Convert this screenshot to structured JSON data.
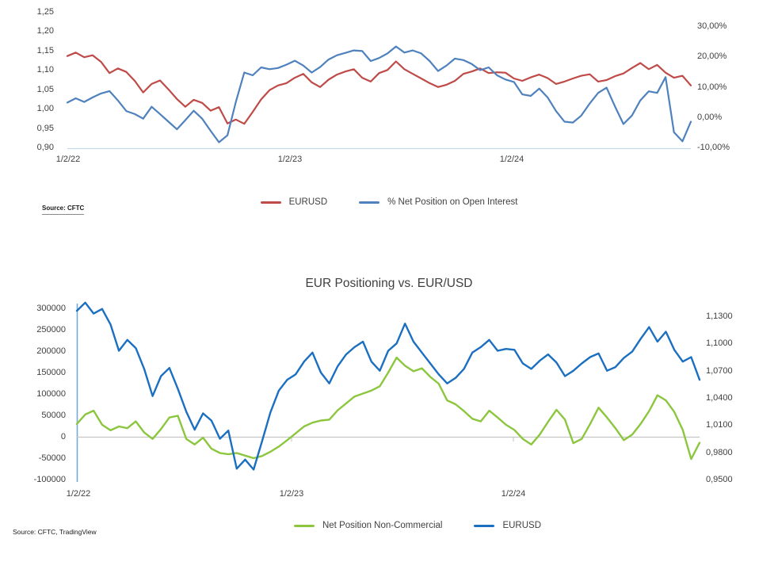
{
  "page": {
    "background": "#ffffff"
  },
  "chart_data": [
    {
      "type": "line",
      "title": "",
      "source": "Source: CFTC",
      "legend_position": "bottom-center",
      "grid": "baseline-only",
      "x_tick_labels": [
        "1/2/22",
        "1/2/23",
        "1/2/24"
      ],
      "left_axis": {
        "range": [
          0.9,
          1.25
        ],
        "ticks": [
          "1,25",
          "1,20",
          "1,15",
          "1,10",
          "1,05",
          "1,00",
          "0,95",
          "0,90"
        ]
      },
      "right_axis": {
        "range": [
          -10,
          30
        ],
        "ticks": [
          "30,00%",
          "20,00%",
          "10,00%",
          "0,00%",
          "-10,00%"
        ]
      },
      "series": [
        {
          "name": "EURUSD",
          "axis": "left",
          "color": "#BE4B48",
          "values": [
            1.136,
            1.145,
            1.133,
            1.138,
            1.121,
            1.092,
            1.104,
            1.095,
            1.072,
            1.042,
            1.064,
            1.073,
            1.05,
            1.025,
            1.005,
            1.023,
            1.015,
            0.995,
            1.004,
            0.962,
            0.972,
            0.961,
            0.992,
            1.024,
            1.048,
            1.06,
            1.066,
            1.08,
            1.09,
            1.068,
            1.056,
            1.075,
            1.088,
            1.096,
            1.102,
            1.08,
            1.07,
            1.092,
            1.1,
            1.122,
            1.102,
            1.09,
            1.078,
            1.066,
            1.056,
            1.062,
            1.072,
            1.09,
            1.096,
            1.104,
            1.092,
            1.094,
            1.093,
            1.078,
            1.072,
            1.081,
            1.088,
            1.079,
            1.064,
            1.07,
            1.078,
            1.085,
            1.089,
            1.07,
            1.074,
            1.084,
            1.091,
            1.105,
            1.118,
            1.102,
            1.113,
            1.093,
            1.08,
            1.085,
            1.06
          ]
        },
        {
          "name": "% Net Position on Open Interest",
          "axis": "right",
          "color": "#4F81BD",
          "values": [
            4.8,
            6.2,
            5.0,
            6.5,
            7.8,
            8.6,
            5.5,
            2.0,
            1.0,
            -0.5,
            3.4,
            1.0,
            -1.5,
            -4.0,
            -1.0,
            2.1,
            -0.5,
            -4.5,
            -8.3,
            -6.0,
            5.0,
            14.7,
            13.8,
            16.4,
            15.8,
            16.2,
            17.3,
            18.6,
            17.0,
            14.7,
            16.5,
            19.0,
            20.4,
            21.2,
            22.0,
            21.8,
            18.5,
            19.5,
            21.0,
            23.3,
            21.3,
            22.0,
            21.0,
            18.5,
            15.2,
            17.0,
            19.3,
            18.8,
            17.5,
            15.5,
            16.4,
            13.8,
            12.4,
            11.6,
            7.5,
            7.0,
            9.4,
            6.5,
            2.0,
            -1.5,
            -1.8,
            0.5,
            4.5,
            8.0,
            9.7,
            3.5,
            -2.3,
            0.5,
            5.5,
            8.5,
            8.0,
            13.2,
            -5.0,
            -8.0,
            -1.5
          ]
        }
      ]
    },
    {
      "type": "line",
      "title": "EUR Positioning vs. EUR/USD",
      "source": "Source: CFTC, TradingView",
      "legend_position": "bottom-center",
      "grid": "zero-line-only",
      "x_tick_labels": [
        "1/2/22",
        "1/2/23",
        "1/2/24"
      ],
      "left_axis": {
        "range": [
          -100000,
          300000
        ],
        "ticks": [
          "300000",
          "250000",
          "200000",
          "150000",
          "100000",
          "50000",
          "0",
          "-50000",
          "-100000"
        ]
      },
      "right_axis": {
        "range": [
          0.95,
          1.13
        ],
        "ticks": [
          "1,1300",
          "1,1000",
          "1,0700",
          "1,0400",
          "1,0100",
          "0,9800",
          "0,9500"
        ]
      },
      "series": [
        {
          "name": "Net Position Non-Commercial",
          "axis": "left",
          "color": "#8CC63E",
          "values": [
            30000,
            52000,
            61000,
            28000,
            15000,
            24000,
            20000,
            36000,
            10000,
            -5000,
            18000,
            45000,
            49000,
            -5000,
            -18000,
            -2000,
            -28000,
            -38000,
            -41000,
            -38000,
            -44000,
            -50000,
            -45000,
            -35000,
            -23000,
            -8000,
            8000,
            24000,
            33000,
            38000,
            40000,
            62000,
            78000,
            94000,
            101000,
            108000,
            118000,
            150000,
            185000,
            166000,
            153000,
            160000,
            140000,
            124000,
            85000,
            76000,
            60000,
            42000,
            36000,
            61000,
            45000,
            28000,
            16000,
            -5000,
            -18000,
            5000,
            35000,
            63000,
            40000,
            -15000,
            -5000,
            30000,
            68000,
            45000,
            20000,
            -8000,
            5000,
            30000,
            60000,
            97000,
            85000,
            58000,
            16000,
            -52000,
            -14000
          ]
        },
        {
          "name": "EURUSD",
          "axis": "right",
          "color": "#1B6FC1",
          "values": [
            1.136,
            1.145,
            1.133,
            1.138,
            1.121,
            1.092,
            1.104,
            1.095,
            1.072,
            1.042,
            1.064,
            1.073,
            1.05,
            1.025,
            1.005,
            1.023,
            1.015,
            0.995,
            1.004,
            0.962,
            0.972,
            0.961,
            0.992,
            1.024,
            1.048,
            1.06,
            1.066,
            1.08,
            1.09,
            1.068,
            1.056,
            1.075,
            1.088,
            1.096,
            1.102,
            1.08,
            1.07,
            1.092,
            1.1,
            1.122,
            1.102,
            1.09,
            1.078,
            1.066,
            1.056,
            1.062,
            1.072,
            1.09,
            1.096,
            1.104,
            1.092,
            1.094,
            1.093,
            1.078,
            1.072,
            1.081,
            1.088,
            1.079,
            1.064,
            1.07,
            1.078,
            1.085,
            1.089,
            1.07,
            1.074,
            1.084,
            1.091,
            1.105,
            1.118,
            1.102,
            1.113,
            1.093,
            1.08,
            1.085,
            1.06
          ]
        }
      ]
    }
  ]
}
